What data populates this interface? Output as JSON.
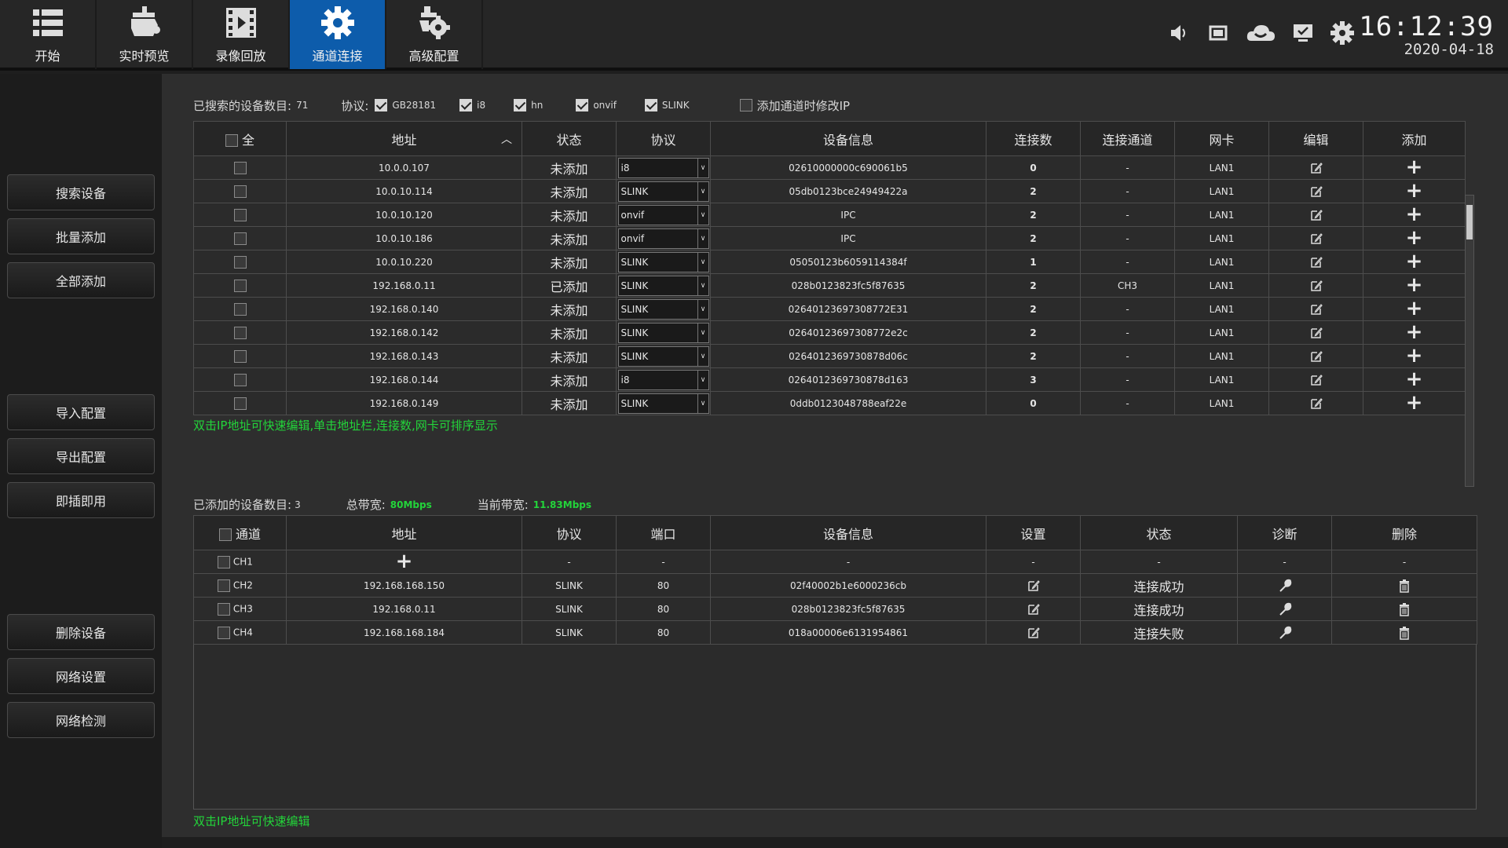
{
  "nav": [
    {
      "label": "开始",
      "icon": "list-icon",
      "active": false
    },
    {
      "label": "实时预览",
      "icon": "camera-icon",
      "active": false
    },
    {
      "label": "录像回放",
      "icon": "film-icon",
      "active": false
    },
    {
      "label": "通道连接",
      "icon": "gear-icon",
      "active": true
    },
    {
      "label": "高级配置",
      "icon": "advanced-gear-icon",
      "active": false
    }
  ],
  "tray_icons": [
    "speaker-icon",
    "screen-icon",
    "cloud-icon",
    "monitor-icon",
    "settings-icon"
  ],
  "clock": {
    "time": "16:12:39",
    "date": "2020-04-18"
  },
  "sidebar": {
    "search": "搜索设备",
    "batch_add": "批量添加",
    "add_all": "全部添加",
    "import": "导入配置",
    "export": "导出配置",
    "plug_play": "即插即用",
    "delete_device": "删除设备",
    "network_settings": "网络设置",
    "network_check": "网络检测"
  },
  "search": {
    "count_label": "已搜索的设备数目:",
    "count": "71",
    "protocol_label": "协议:",
    "protocols": [
      {
        "name": "GB28181",
        "checked": true
      },
      {
        "name": "i8",
        "checked": true
      },
      {
        "name": "hn",
        "checked": true
      },
      {
        "name": "onvif",
        "checked": true
      },
      {
        "name": "SLINK",
        "checked": true
      }
    ],
    "modify_ip_label": "添加通道时修改IP",
    "modify_ip_checked": false
  },
  "search_table": {
    "headers": {
      "all": "全",
      "address": "地址",
      "status": "状态",
      "protocol": "协议",
      "info": "设备信息",
      "connections": "连接数",
      "channel": "连接通道",
      "nic": "网卡",
      "edit": "编辑",
      "add": "添加"
    },
    "rows": [
      {
        "address": "10.0.0.107",
        "status": "未添加",
        "protocol": "i8",
        "info": "02610000000c690061b5",
        "connections": "0",
        "channel": "-",
        "nic": "LAN1"
      },
      {
        "address": "10.0.10.114",
        "status": "未添加",
        "protocol": "SLINK",
        "info": "05db0123bce24949422a",
        "connections": "2",
        "channel": "-",
        "nic": "LAN1"
      },
      {
        "address": "10.0.10.120",
        "status": "未添加",
        "protocol": "onvif",
        "info": "IPC",
        "connections": "2",
        "channel": "-",
        "nic": "LAN1"
      },
      {
        "address": "10.0.10.186",
        "status": "未添加",
        "protocol": "onvif",
        "info": "IPC",
        "connections": "2",
        "channel": "-",
        "nic": "LAN1"
      },
      {
        "address": "10.0.10.220",
        "status": "未添加",
        "protocol": "SLINK",
        "info": "05050123b6059114384f",
        "connections": "1",
        "channel": "-",
        "nic": "LAN1"
      },
      {
        "address": "192.168.0.11",
        "status": "已添加",
        "protocol": "SLINK",
        "info": "028b0123823fc5f87635",
        "connections": "2",
        "channel": "CH3",
        "nic": "LAN1"
      },
      {
        "address": "192.168.0.140",
        "status": "未添加",
        "protocol": "SLINK",
        "info": "02640123697308772E31",
        "connections": "2",
        "channel": "-",
        "nic": "LAN1"
      },
      {
        "address": "192.168.0.142",
        "status": "未添加",
        "protocol": "SLINK",
        "info": "02640123697308772e2c",
        "connections": "2",
        "channel": "-",
        "nic": "LAN1"
      },
      {
        "address": "192.168.0.143",
        "status": "未添加",
        "protocol": "SLINK",
        "info": "0264012369730878d06c",
        "connections": "2",
        "channel": "-",
        "nic": "LAN1"
      },
      {
        "address": "192.168.0.144",
        "status": "未添加",
        "protocol": "i8",
        "info": "0264012369730878d163",
        "connections": "3",
        "channel": "-",
        "nic": "LAN1"
      },
      {
        "address": "192.168.0.149",
        "status": "未添加",
        "protocol": "SLINK",
        "info": "0ddb0123048788eaf22e",
        "connections": "0",
        "channel": "-",
        "nic": "LAN1"
      }
    ],
    "hint": "双击IP地址可快速编辑,单击地址栏,连接数,网卡可排序显示"
  },
  "added": {
    "count_label": "已添加的设备数目:",
    "count": "3",
    "total_bw_label": "总带宽:",
    "total_bw": "80Mbps",
    "current_bw_label": "当前带宽:",
    "current_bw": "11.83Mbps"
  },
  "added_table": {
    "headers": {
      "channel": "通道",
      "address": "地址",
      "protocol": "协议",
      "port": "端口",
      "info": "设备信息",
      "settings": "设置",
      "status": "状态",
      "diagnose": "诊断",
      "delete": "删除"
    },
    "rows": [
      {
        "channel": "CH1",
        "address": "",
        "protocol": "-",
        "port": "-",
        "info": "-",
        "settings": "-",
        "status": "-",
        "diagnose": "-",
        "delete": "-",
        "empty": true
      },
      {
        "channel": "CH2",
        "address": "192.168.168.150",
        "protocol": "SLINK",
        "port": "80",
        "info": "02f40002b1e6000236cb",
        "status": "连接成功",
        "ok": true
      },
      {
        "channel": "CH3",
        "address": "192.168.0.11",
        "protocol": "SLINK",
        "port": "80",
        "info": "028b0123823fc5f87635",
        "status": "连接成功",
        "ok": true
      },
      {
        "channel": "CH4",
        "address": "192.168.168.184",
        "protocol": "SLINK",
        "port": "80",
        "info": "018a00006e6131954861",
        "status": "连接失败",
        "ok": false
      }
    ],
    "hint": "双击IP地址可快速编辑"
  }
}
